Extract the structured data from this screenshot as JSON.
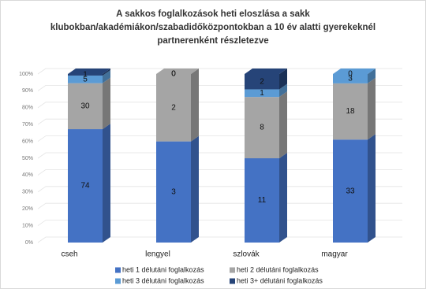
{
  "chart_data": {
    "type": "bar",
    "stacking": "percent",
    "title": [
      "A sakkos foglalkozások heti eloszlása a sakk",
      "klubokban/akadémiákon/szabadidőközpontokban  a 10 év alatti gyerekeknél",
      "partnerenként  részletezve"
    ],
    "categories": [
      "cseh",
      "lengyel",
      "szlovák",
      "magyar"
    ],
    "series": [
      {
        "name": "heti 1 délutáni foglalkozás",
        "color": "#4472c4",
        "values": [
          74,
          3,
          11,
          33
        ]
      },
      {
        "name": "heti 2 délutáni foglalkozás",
        "color": "#a5a5a5",
        "values": [
          30,
          2,
          8,
          18
        ]
      },
      {
        "name": "heti 3 délutáni foglalkozás",
        "color": "#5b9bd5",
        "values": [
          5,
          0,
          1,
          3
        ]
      },
      {
        "name": "heti 3+ délutáni foglalkozás",
        "color": "#264478",
        "values": [
          1,
          0,
          2,
          0
        ]
      }
    ],
    "ylim": [
      0,
      100
    ],
    "yticks": [
      {
        "value": 0,
        "label": "0%"
      },
      {
        "value": 10,
        "label": "10%"
      },
      {
        "value": 20,
        "label": "20%"
      },
      {
        "value": 30,
        "label": "30%"
      },
      {
        "value": 40,
        "label": "40%"
      },
      {
        "value": 50,
        "label": "50%"
      },
      {
        "value": 60,
        "label": "60%"
      },
      {
        "value": 70,
        "label": "70%"
      },
      {
        "value": 80,
        "label": "80%"
      },
      {
        "value": 90,
        "label": "90%"
      },
      {
        "value": 100,
        "label": "100%"
      }
    ],
    "grid": true
  }
}
